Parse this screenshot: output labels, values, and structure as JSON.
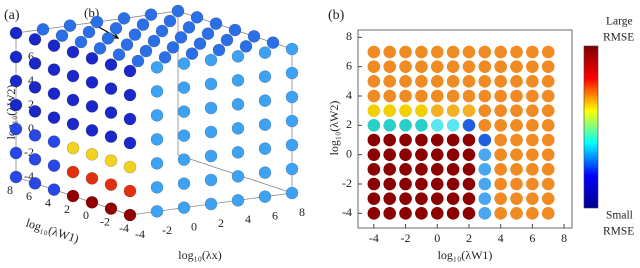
{
  "chart_data": [
    {
      "type": "scatter3d",
      "panel_label": "(a)",
      "annotation": "(b)",
      "xlabel": "log₁₀(λx)",
      "ylabel": "log₁₀(λW1)",
      "zlabel": "log₁₀(λW2)",
      "xlim": [
        -4,
        8
      ],
      "ylim": [
        -4,
        8
      ],
      "zlim": [
        -4,
        8
      ],
      "xticks": [
        -4,
        -2,
        0,
        2,
        4,
        6,
        8
      ],
      "yticks": [
        -4,
        -2,
        0,
        2,
        4,
        6,
        8
      ],
      "zticks": [
        -4,
        -2,
        0,
        2,
        4,
        6
      ],
      "series": [
        {
          "color": "#2a6fe8",
          "x": [
            8,
            6,
            4,
            2,
            0,
            -2,
            8,
            6,
            4,
            2,
            0,
            -2,
            8,
            6,
            4,
            2,
            0,
            -2,
            8,
            6,
            4,
            2,
            0,
            -2,
            8,
            6,
            4,
            2,
            0,
            -2,
            8,
            6,
            4,
            2,
            0,
            -2
          ],
          "y": [
            8,
            8,
            8,
            8,
            8,
            8,
            6,
            6,
            6,
            6,
            6,
            6,
            4,
            4,
            4,
            4,
            4,
            4,
            2,
            2,
            2,
            2,
            2,
            2,
            0,
            0,
            0,
            0,
            0,
            0,
            -2,
            -2,
            -2,
            -2,
            -2,
            -2
          ],
          "z": [
            8,
            8,
            8,
            8,
            8,
            8,
            8,
            8,
            8,
            8,
            8,
            8,
            8,
            8,
            8,
            8,
            8,
            8,
            8,
            8,
            8,
            8,
            8,
            8,
            8,
            8,
            8,
            8,
            8,
            8,
            8,
            8,
            8,
            8,
            8,
            8
          ]
        },
        {
          "color": "#3ea2f2",
          "x": [
            8,
            6,
            4,
            2,
            0,
            -2,
            8,
            6,
            4,
            2,
            0,
            -2,
            8,
            6,
            4,
            2,
            0,
            -2,
            8,
            6,
            4,
            2,
            0,
            -2,
            8,
            6,
            4,
            2,
            0,
            -2,
            8,
            6,
            4,
            2,
            0,
            -2,
            8,
            6,
            4,
            2,
            0,
            -2
          ],
          "y": [
            -4,
            -4,
            -4,
            -4,
            -4,
            -4,
            -4,
            -4,
            -4,
            -4,
            -4,
            -4,
            -4,
            -4,
            -4,
            -4,
            -4,
            -4,
            -4,
            -4,
            -4,
            -4,
            -4,
            -4,
            -4,
            -4,
            -4,
            -4,
            -4,
            -4,
            -4,
            -4,
            -4,
            -4,
            -4,
            -4,
            -4,
            -4,
            -4,
            -4,
            -4,
            -4
          ],
          "z": [
            8,
            8,
            8,
            8,
            8,
            8,
            6,
            6,
            6,
            6,
            6,
            6,
            4,
            4,
            4,
            4,
            4,
            4,
            2,
            2,
            2,
            2,
            2,
            2,
            0,
            0,
            0,
            0,
            0,
            0,
            -2,
            -2,
            -2,
            -2,
            -2,
            -2,
            -4,
            -4,
            -4,
            -4,
            -4,
            -4
          ]
        },
        {
          "color": "#1a28c8",
          "x": [
            -4,
            -4,
            -4,
            -4,
            -4,
            -4,
            -4,
            -4,
            -4,
            -4,
            -4,
            -4,
            -4,
            -4,
            -4,
            -4,
            -4,
            -4,
            -4,
            -4,
            -4,
            -4,
            -4,
            -4,
            -4,
            -4,
            -4,
            -4
          ],
          "y": [
            8,
            6,
            4,
            2,
            0,
            -2,
            -4,
            8,
            6,
            4,
            2,
            0,
            -2,
            -4,
            8,
            6,
            4,
            2,
            0,
            -2,
            -4,
            8,
            6,
            4,
            2,
            0,
            -2,
            -4
          ],
          "z": [
            8,
            8,
            8,
            8,
            8,
            8,
            8,
            6,
            6,
            6,
            6,
            6,
            6,
            6,
            4,
            4,
            4,
            4,
            4,
            4,
            4,
            2,
            2,
            2,
            2,
            2,
            2,
            2
          ]
        },
        {
          "color": "#2848e6",
          "x": [
            -4,
            -4,
            -4,
            -4,
            -4,
            -4,
            -4,
            -4,
            -4
          ],
          "y": [
            8,
            6,
            4,
            8,
            6,
            4,
            8,
            6,
            4
          ],
          "z": [
            0,
            0,
            0,
            -2,
            -2,
            -2,
            -4,
            -4,
            -4
          ]
        },
        {
          "color": "#f2d21e",
          "x": [
            -4,
            -4,
            -4,
            -4
          ],
          "y": [
            2,
            0,
            -2,
            -4
          ],
          "z": [
            0,
            0,
            0,
            0
          ]
        },
        {
          "color": "#e03010",
          "x": [
            -4,
            -4,
            -4,
            -4
          ],
          "y": [
            2,
            0,
            -2,
            -4
          ],
          "z": [
            -2,
            -2,
            -2,
            -2
          ]
        },
        {
          "color": "#900000",
          "x": [
            -4,
            -4,
            -4,
            -4
          ],
          "y": [
            2,
            0,
            -2,
            -4
          ],
          "z": [
            -4,
            -4,
            -4,
            -4
          ]
        }
      ]
    },
    {
      "type": "scatter",
      "panel_label": "(b)",
      "xlabel": "log₁₀(λW1)",
      "ylabel": "log₁₀(λW2)",
      "xlim": [
        -5,
        8.5
      ],
      "ylim": [
        -5,
        8.5
      ],
      "xticks": [
        -4,
        -2,
        0,
        2,
        4,
        6,
        8
      ],
      "yticks": [
        -4,
        -2,
        0,
        2,
        4,
        6,
        8
      ],
      "colorbar": {
        "colors": [
          "#00008f",
          "#0000ff",
          "#00ffff",
          "#ffff00",
          "#ff0000",
          "#800000"
        ],
        "top_label": [
          "Large",
          "RMSE"
        ],
        "bottom_label": [
          "Small",
          "RMSE"
        ]
      },
      "series": [
        {
          "color": "#8b0000",
          "x": [
            -4,
            -3,
            -2,
            -1,
            0,
            1,
            2,
            -4,
            -3,
            -2,
            -1,
            0,
            1,
            2,
            -4,
            -3,
            -2,
            -1,
            0,
            1,
            2,
            -4,
            -3,
            -2,
            -1,
            0,
            1,
            2,
            -4,
            -3,
            -2,
            -1,
            0,
            1,
            2,
            -4,
            -3,
            -2,
            -1,
            0,
            1,
            2
          ],
          "y": [
            1,
            1,
            1,
            1,
            1,
            1,
            1,
            0,
            0,
            0,
            0,
            0,
            0,
            0,
            -1,
            -1,
            -1,
            -1,
            -1,
            -1,
            -1,
            -2,
            -2,
            -2,
            -2,
            -2,
            -2,
            -2,
            -3,
            -3,
            -3,
            -3,
            -3,
            -3,
            -3,
            -4,
            -4,
            -4,
            -4,
            -4,
            -4,
            -4
          ]
        },
        {
          "color": "#4aa6f0",
          "x": [
            3,
            3,
            3,
            3,
            3
          ],
          "y": [
            0,
            -1,
            -2,
            -3,
            -4
          ]
        },
        {
          "color": "#1e5ee0",
          "x": [
            2,
            3
          ],
          "y": [
            2,
            1
          ]
        },
        {
          "color": "#2ad0c8",
          "x": [
            -4,
            -3,
            -2,
            -1
          ],
          "y": [
            2,
            2,
            2,
            2
          ]
        },
        {
          "color": "#58e6f0",
          "x": [
            0,
            1
          ],
          "y": [
            2,
            2
          ]
        },
        {
          "color": "#f2d000",
          "x": [
            -4,
            -3,
            -2,
            -1
          ],
          "y": [
            3,
            3,
            3,
            3
          ]
        },
        {
          "color": "#f4b020",
          "x": [
            0,
            1,
            2
          ],
          "y": [
            3,
            3,
            3
          ]
        },
        {
          "color": "#f08a22",
          "x": [
            -4,
            -3,
            -2,
            -1,
            0,
            1,
            2,
            3,
            4,
            5,
            6,
            7,
            -4,
            -3,
            -2,
            -1,
            0,
            1,
            2,
            3,
            4,
            5,
            6,
            7,
            -4,
            -3,
            -2,
            -1,
            0,
            1,
            2,
            3,
            4,
            5,
            6,
            7,
            -4,
            -3,
            -2,
            -1,
            0,
            1,
            2,
            3,
            4,
            5,
            6,
            7
          ],
          "y": [
            7,
            7,
            7,
            7,
            7,
            7,
            7,
            7,
            7,
            7,
            7,
            7,
            6,
            6,
            6,
            6,
            6,
            6,
            6,
            6,
            6,
            6,
            6,
            6,
            5,
            5,
            5,
            5,
            5,
            5,
            5,
            5,
            5,
            5,
            5,
            5,
            4,
            4,
            4,
            4,
            4,
            4,
            4,
            4,
            4,
            4,
            4,
            4
          ]
        },
        {
          "color": "#f08a22",
          "x": [
            3,
            4,
            5,
            6,
            7,
            3,
            4,
            5,
            6,
            7,
            4,
            5,
            6,
            7,
            4,
            5,
            6,
            7,
            4,
            5,
            6,
            7,
            4,
            5,
            6,
            7,
            4,
            5,
            6,
            7,
            4,
            5,
            6,
            7
          ],
          "y": [
            3,
            3,
            3,
            3,
            3,
            2,
            2,
            2,
            2,
            2,
            1,
            1,
            1,
            1,
            0,
            0,
            0,
            0,
            -1,
            -1,
            -1,
            -1,
            -2,
            -2,
            -2,
            -2,
            -3,
            -3,
            -3,
            -3,
            -4,
            -4,
            -4,
            -4
          ]
        }
      ]
    }
  ]
}
